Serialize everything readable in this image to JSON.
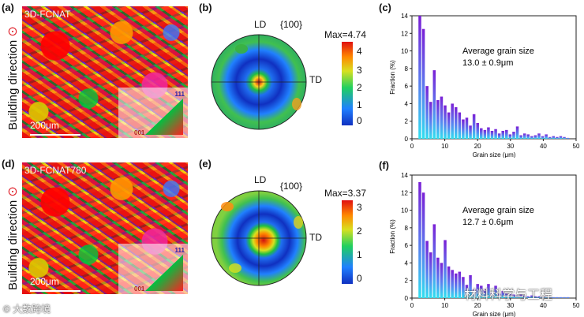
{
  "panel_a": {
    "label": "(a)",
    "title": "3D-FCNAT",
    "scale_bar": "200μm",
    "ipf_top": "111",
    "ipf_left": "001",
    "side_label": "Building direction",
    "side_icon": "⊙"
  },
  "panel_d": {
    "label": "(d)",
    "title": "3D-FCNAT780",
    "scale_bar": "200μm",
    "ipf_top": "111",
    "ipf_left": "001",
    "side_label": "Building direction",
    "side_icon": "⊙"
  },
  "panel_b": {
    "label": "(b)",
    "ld": "LD",
    "td": "TD",
    "plane": "{100}",
    "max": "Max=4.74",
    "ticks": [
      "4",
      "3",
      "2",
      "1",
      "0"
    ]
  },
  "panel_e": {
    "label": "(e)",
    "ld": "LD",
    "td": "TD",
    "plane": "{100}",
    "max": "Max=3.37",
    "ticks": [
      "3",
      "2",
      "1",
      "0"
    ]
  },
  "chart_data": [
    {
      "type": "bar",
      "panel": "(c)",
      "annotation_line1": "Average grain size",
      "annotation_line2": "13.0 ± 0.9μm",
      "xlabel": "Grain size (μm)",
      "ylabel": "Fraction (%)",
      "xlim": [
        0,
        50
      ],
      "ylim": [
        0,
        14
      ],
      "xticks": [
        "0",
        "10",
        "20",
        "30",
        "40",
        "50"
      ],
      "yticks": [
        "0",
        "2",
        "4",
        "6",
        "8",
        "10",
        "12",
        "14"
      ],
      "x": [
        2.4,
        3.5,
        4.6,
        5.7,
        6.8,
        7.9,
        9.0,
        10.1,
        11.2,
        12.3,
        13.4,
        14.5,
        15.6,
        16.7,
        17.8,
        18.9,
        20.0,
        21.1,
        22.2,
        23.3,
        24.4,
        25.5,
        26.6,
        27.7,
        28.8,
        29.9,
        31.0,
        32.1,
        33.2,
        34.3,
        35.4,
        36.5,
        37.6,
        38.7,
        39.8,
        40.9,
        42.0,
        43.1,
        44.2,
        45.3,
        46.4,
        47.5
      ],
      "values": [
        14.0,
        12.5,
        6.0,
        4.2,
        7.8,
        4.4,
        4.8,
        3.8,
        3.0,
        4.0,
        3.6,
        3.0,
        2.2,
        2.4,
        1.5,
        2.8,
        1.8,
        1.2,
        1.0,
        1.3,
        0.9,
        1.1,
        0.6,
        0.9,
        1.0,
        0.5,
        0.8,
        1.4,
        0.4,
        0.6,
        0.5,
        0.3,
        0.4,
        0.6,
        0.3,
        0.5,
        0.2,
        0.3,
        0.2,
        0.3,
        0.2,
        0.1
      ]
    },
    {
      "type": "bar",
      "panel": "(f)",
      "annotation_line1": "Average grain size",
      "annotation_line2": "12.7 ± 0.6μm",
      "xlabel": "Grain size (μm)",
      "ylabel": "Fraction (%)",
      "xlim": [
        0,
        50
      ],
      "ylim": [
        0,
        14
      ],
      "xticks": [
        "0",
        "10",
        "20",
        "30",
        "40",
        "50"
      ],
      "yticks": [
        "0",
        "2",
        "4",
        "6",
        "8",
        "10",
        "12",
        "14"
      ],
      "x": [
        2.4,
        3.5,
        4.6,
        5.7,
        6.8,
        7.9,
        9.0,
        10.1,
        11.2,
        12.3,
        13.4,
        14.5,
        15.6,
        16.7,
        17.8,
        18.9,
        20.0,
        21.1,
        22.2,
        23.3,
        24.4,
        25.5,
        26.6,
        27.7,
        28.8,
        29.9,
        31.0,
        32.1,
        33.2,
        34.3,
        35.4,
        36.5,
        37.6,
        38.7,
        39.8,
        40.9,
        42.0,
        43.1,
        44.2,
        45.3,
        46.4,
        47.5
      ],
      "values": [
        13.2,
        12.0,
        6.5,
        5.2,
        8.4,
        4.6,
        4.0,
        6.6,
        3.6,
        3.2,
        2.8,
        3.0,
        2.4,
        1.5,
        2.6,
        1.0,
        1.6,
        1.4,
        1.0,
        1.6,
        0.7,
        1.4,
        0.5,
        0.8,
        0.6,
        0.5,
        0.4,
        0.3,
        0.4,
        0.3,
        0.2,
        0.3,
        0.2,
        0.2,
        0.1,
        0.2,
        0.1,
        0.1,
        0.1,
        0.1,
        0.1,
        0.1
      ]
    }
  ],
  "watermark_left": "© 大数跨境",
  "watermark_right": "材料科学与工程"
}
